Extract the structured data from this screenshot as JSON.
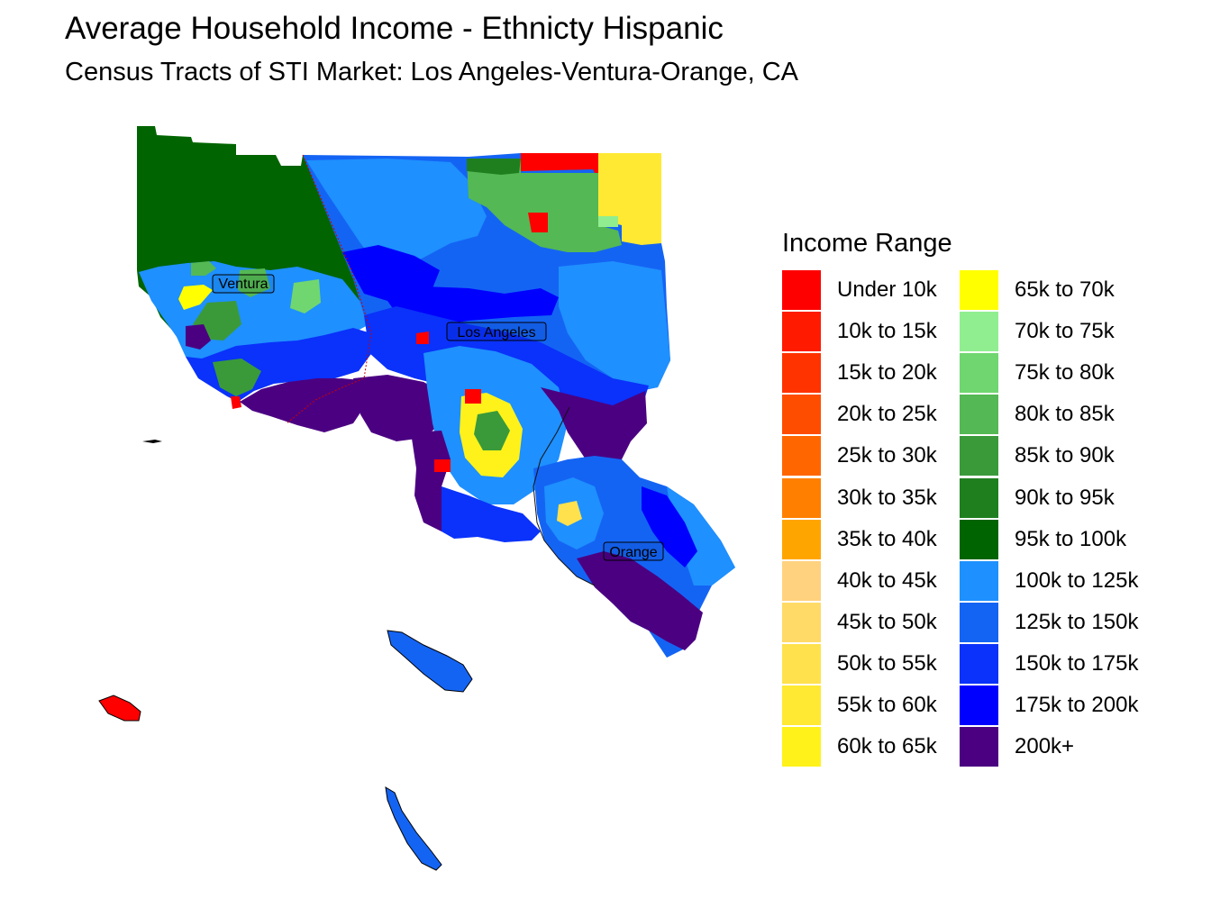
{
  "title": "Average Household Income - Ethnicty Hispanic",
  "subtitle": "Census Tracts of STI Market: Los Angeles-Ventura-Orange, CA",
  "legend": {
    "title": "Income Range",
    "items": [
      {
        "label": "Under 10k",
        "color": "#FF0000"
      },
      {
        "label": "10k to 15k",
        "color": "#FF1A00"
      },
      {
        "label": "15k to 20k",
        "color": "#FF3300"
      },
      {
        "label": "20k to 25k",
        "color": "#FF4D00"
      },
      {
        "label": "25k to 30k",
        "color": "#FF6600"
      },
      {
        "label": "30k to 35k",
        "color": "#FF8000"
      },
      {
        "label": "35k to 40k",
        "color": "#FFA500"
      },
      {
        "label": "40k to 45k",
        "color": "#FFD27F"
      },
      {
        "label": "45k to 50k",
        "color": "#FFDA66"
      },
      {
        "label": "50k to 55k",
        "color": "#FFE14D"
      },
      {
        "label": "55k to 60k",
        "color": "#FFE933"
      },
      {
        "label": "60k to 65k",
        "color": "#FFF21A"
      },
      {
        "label": "65k to 70k",
        "color": "#FFFF00"
      },
      {
        "label": "70k to 75k",
        "color": "#90EE90"
      },
      {
        "label": "75k to 80k",
        "color": "#70D670"
      },
      {
        "label": "80k to 85k",
        "color": "#54B854"
      },
      {
        "label": "85k to 90k",
        "color": "#3A9A3A"
      },
      {
        "label": "90k to 95k",
        "color": "#1F7F1F"
      },
      {
        "label": "95k to 100k",
        "color": "#006400"
      },
      {
        "label": "100k to 125k",
        "color": "#1E90FF"
      },
      {
        "label": "125k to 150k",
        "color": "#1464F4"
      },
      {
        "label": "150k to 175k",
        "color": "#0A32FA"
      },
      {
        "label": "175k to 200k",
        "color": "#0000FF"
      },
      {
        "label": "200k+",
        "color": "#4B0082"
      }
    ]
  },
  "map": {
    "county_labels": [
      "Ventura",
      "Los Angeles",
      "Orange"
    ]
  }
}
